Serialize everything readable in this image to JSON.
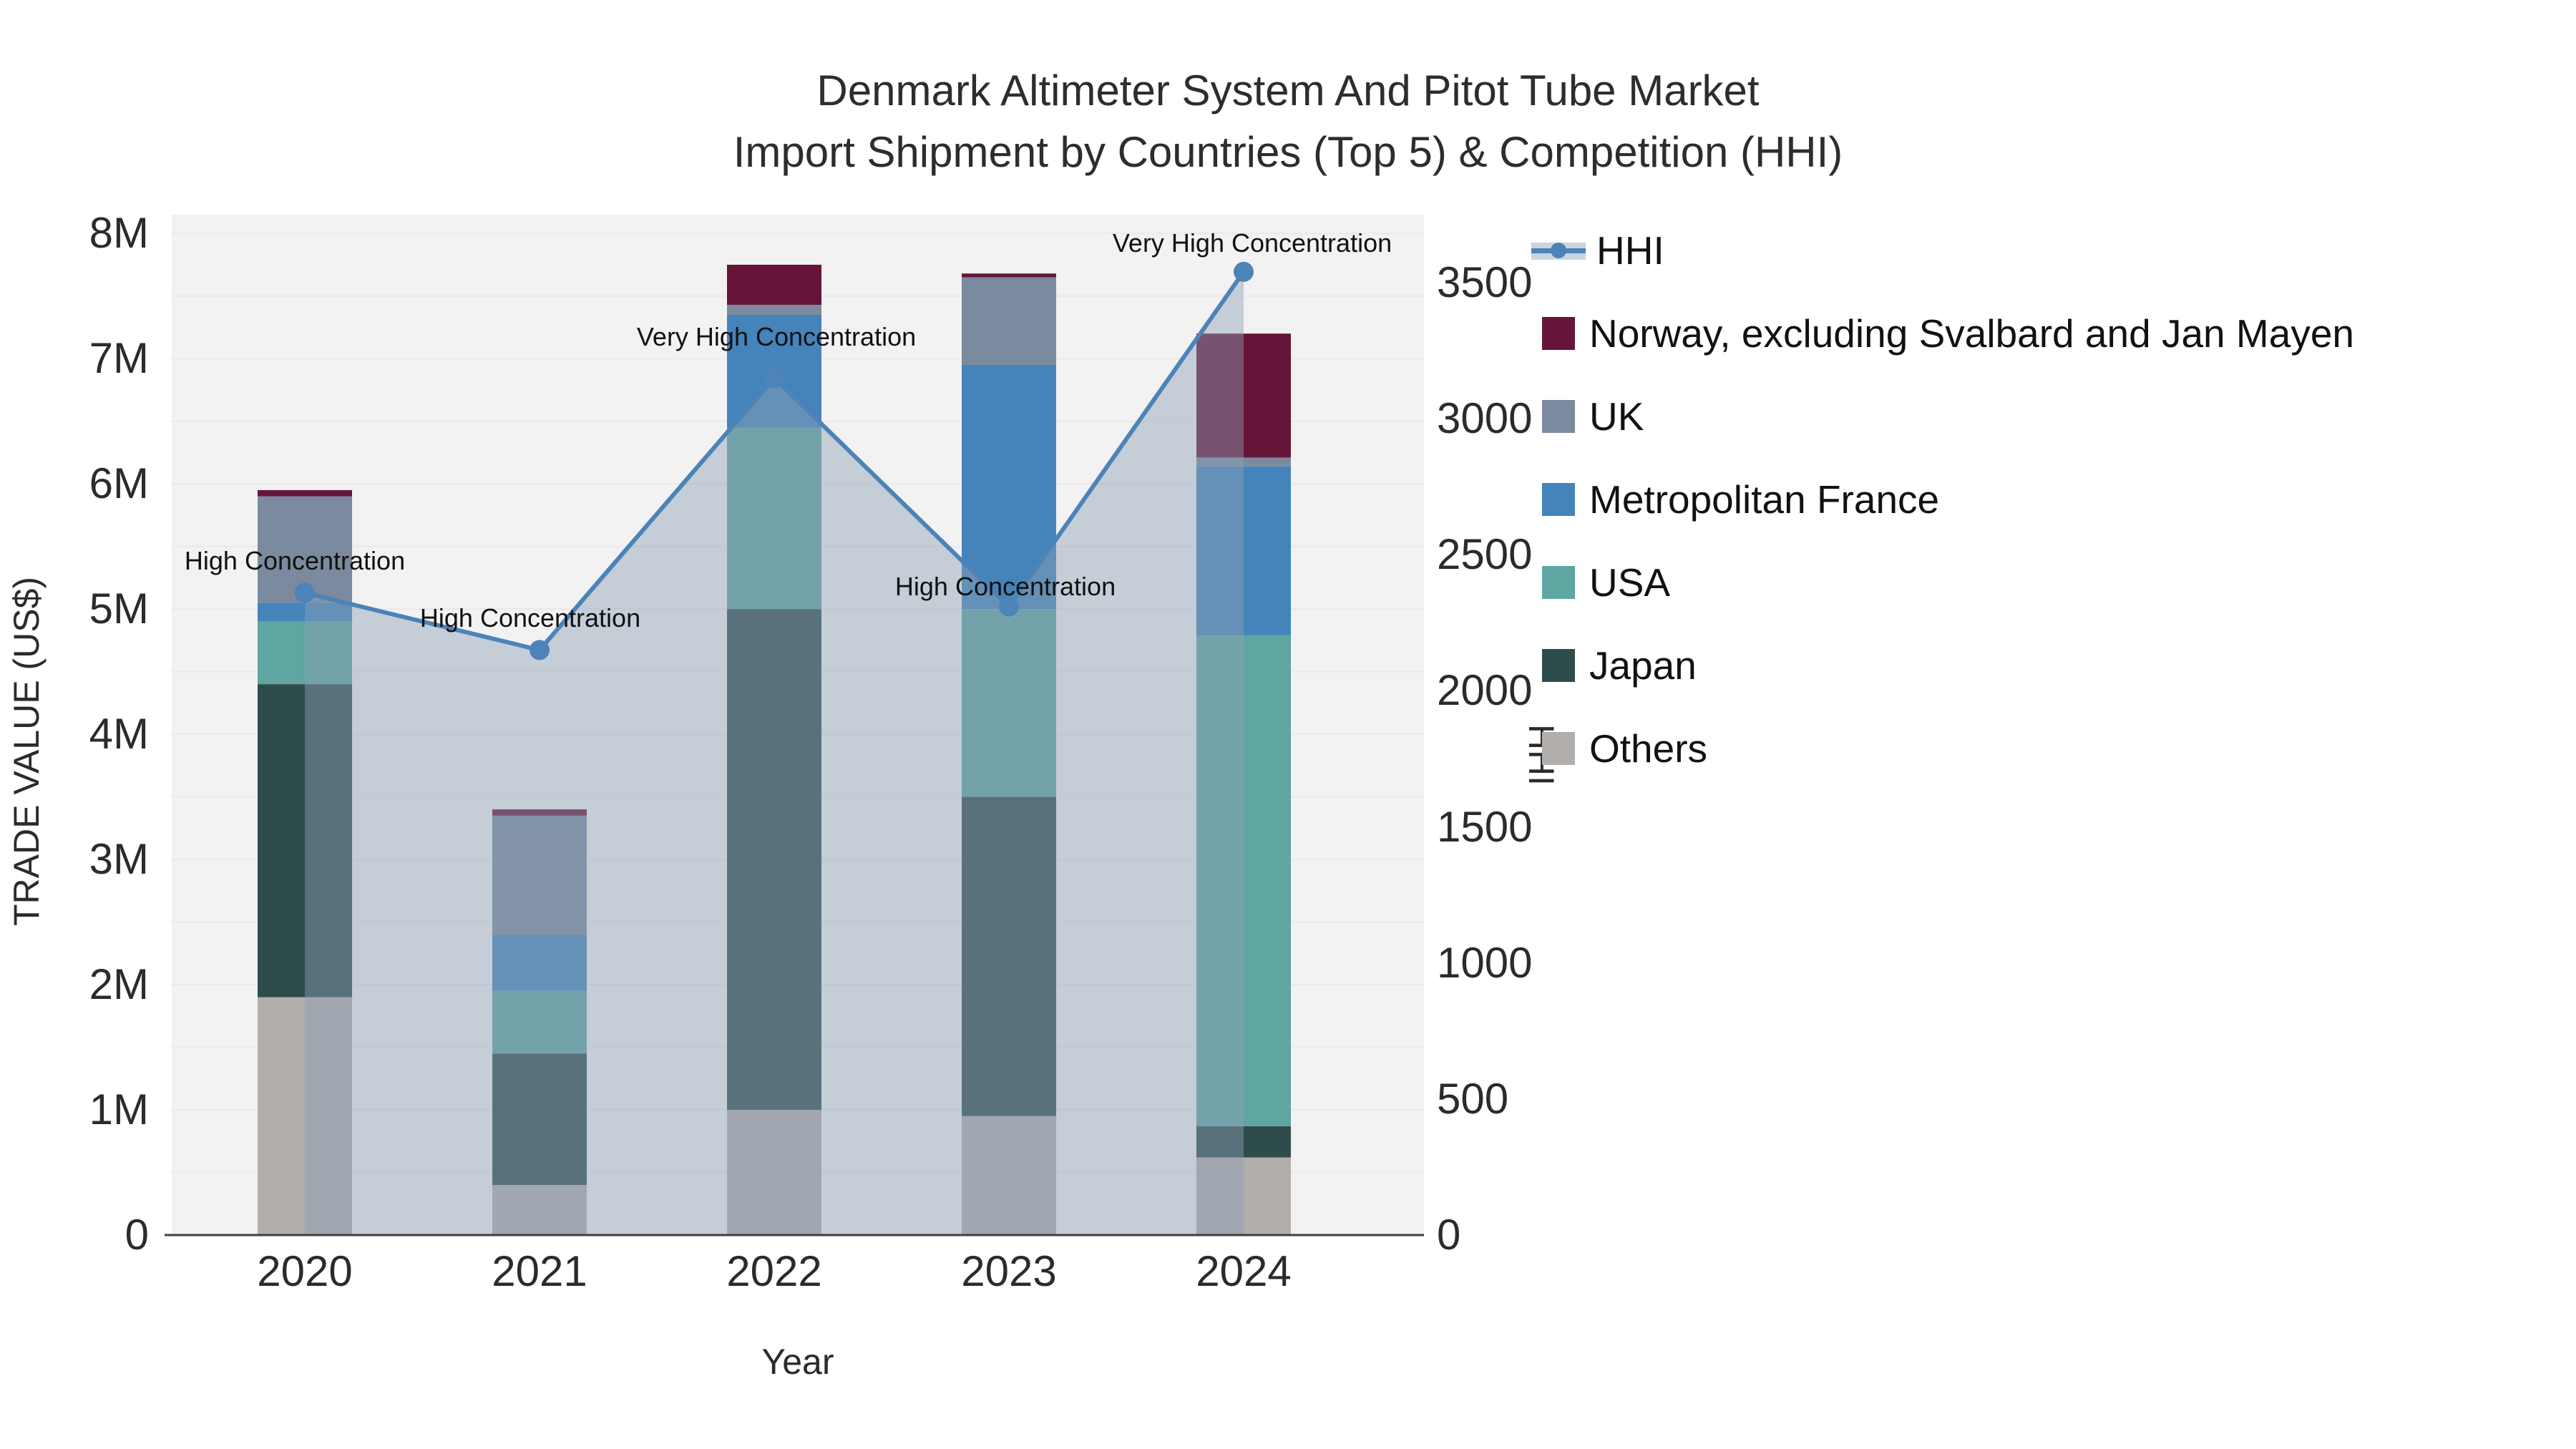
{
  "chart_data": {
    "type": "combo-stacked-bar-line",
    "title_line1": "Denmark Altimeter System And Pitot Tube Market",
    "title_line2": "Import Shipment by Countries (Top 5) & Competition (HHI)",
    "x_axis": {
      "title": "Year",
      "categories": [
        "2020",
        "2021",
        "2022",
        "2023",
        "2024"
      ]
    },
    "y_left": {
      "title": "TRADE VALUE (US$)",
      "tick_labels": [
        "0",
        "1M",
        "2M",
        "3M",
        "4M",
        "5M",
        "6M",
        "7M",
        "8M"
      ],
      "tick_values_musd": [
        0,
        1,
        2,
        3,
        4,
        5,
        6,
        7,
        8
      ],
      "range_musd": [
        0,
        8.15
      ],
      "gridlines_every_musd": 0.5
    },
    "y_right": {
      "title": "HHI",
      "tick_labels": [
        "0",
        "500",
        "1000",
        "1500",
        "2000",
        "2500",
        "3000",
        "3500"
      ],
      "tick_values": [
        0,
        500,
        1000,
        1500,
        2000,
        2500,
        3000,
        3500
      ],
      "range": [
        0,
        3750
      ]
    },
    "bar_series": [
      {
        "name": "Norway, excluding Svalbard and Jan Mayen",
        "color": "#661539",
        "values_musd": [
          0.05,
          0.05,
          0.32,
          0.03,
          0.99
        ]
      },
      {
        "name": "UK",
        "color": "#7b8a9e",
        "values_musd": [
          0.85,
          0.95,
          0.08,
          0.7,
          0.07
        ]
      },
      {
        "name": "Metropolitan France",
        "color": "#4484ba",
        "values_musd": [
          0.15,
          0.45,
          0.9,
          1.95,
          1.35
        ]
      },
      {
        "name": "USA",
        "color": "#5fa5a2",
        "values_musd": [
          0.5,
          0.5,
          1.45,
          1.5,
          3.92
        ]
      },
      {
        "name": "Japan",
        "color": "#2e4c4b",
        "values_musd": [
          2.5,
          1.05,
          4.0,
          2.55,
          0.25
        ]
      },
      {
        "name": "Others",
        "color": "#b1aeac",
        "values_musd": [
          1.9,
          0.4,
          1.0,
          0.95,
          0.62
        ]
      }
    ],
    "stack_order_bottom_to_top": [
      "Others",
      "Japan",
      "USA",
      "Metropolitan France",
      "UK",
      "Norway, excluding Svalbard and Jan Mayen"
    ],
    "bar_totals_musd": [
      5.95,
      3.4,
      7.75,
      7.68,
      7.2
    ],
    "line_series": {
      "name": "HHI",
      "color": "#4c83b8",
      "area_fill": "rgba(143,160,181,0.45)",
      "values": [
        2360,
        2150,
        3150,
        2310,
        3540
      ]
    },
    "annotations": [
      {
        "category": "2020",
        "text": "High Concentration"
      },
      {
        "category": "2021",
        "text": "High Concentration"
      },
      {
        "category": "2022",
        "text": "Very High Concentration"
      },
      {
        "category": "2023",
        "text": "High Concentration"
      },
      {
        "category": "2024",
        "text": "Very High Concentration"
      }
    ],
    "legend": [
      {
        "label": "HHI",
        "swatch": "line",
        "color": "#4c83b8"
      },
      {
        "label": "Norway, excluding Svalbard and Jan Mayen",
        "swatch": "box",
        "color": "#661539"
      },
      {
        "label": "UK",
        "swatch": "box",
        "color": "#7b8a9e"
      },
      {
        "label": "Metropolitan France",
        "swatch": "box",
        "color": "#4484ba"
      },
      {
        "label": "USA",
        "swatch": "box",
        "color": "#5fa5a2"
      },
      {
        "label": "Japan",
        "swatch": "box",
        "color": "#2e4c4b"
      },
      {
        "label": "Others",
        "swatch": "box",
        "color": "#b1aeac"
      }
    ],
    "plot_background": "#f2f2f3",
    "gridline_color": "#e9e9eb",
    "axis_line_color": "#3f3f3f",
    "grid_on": true,
    "legend_position": "right"
  }
}
